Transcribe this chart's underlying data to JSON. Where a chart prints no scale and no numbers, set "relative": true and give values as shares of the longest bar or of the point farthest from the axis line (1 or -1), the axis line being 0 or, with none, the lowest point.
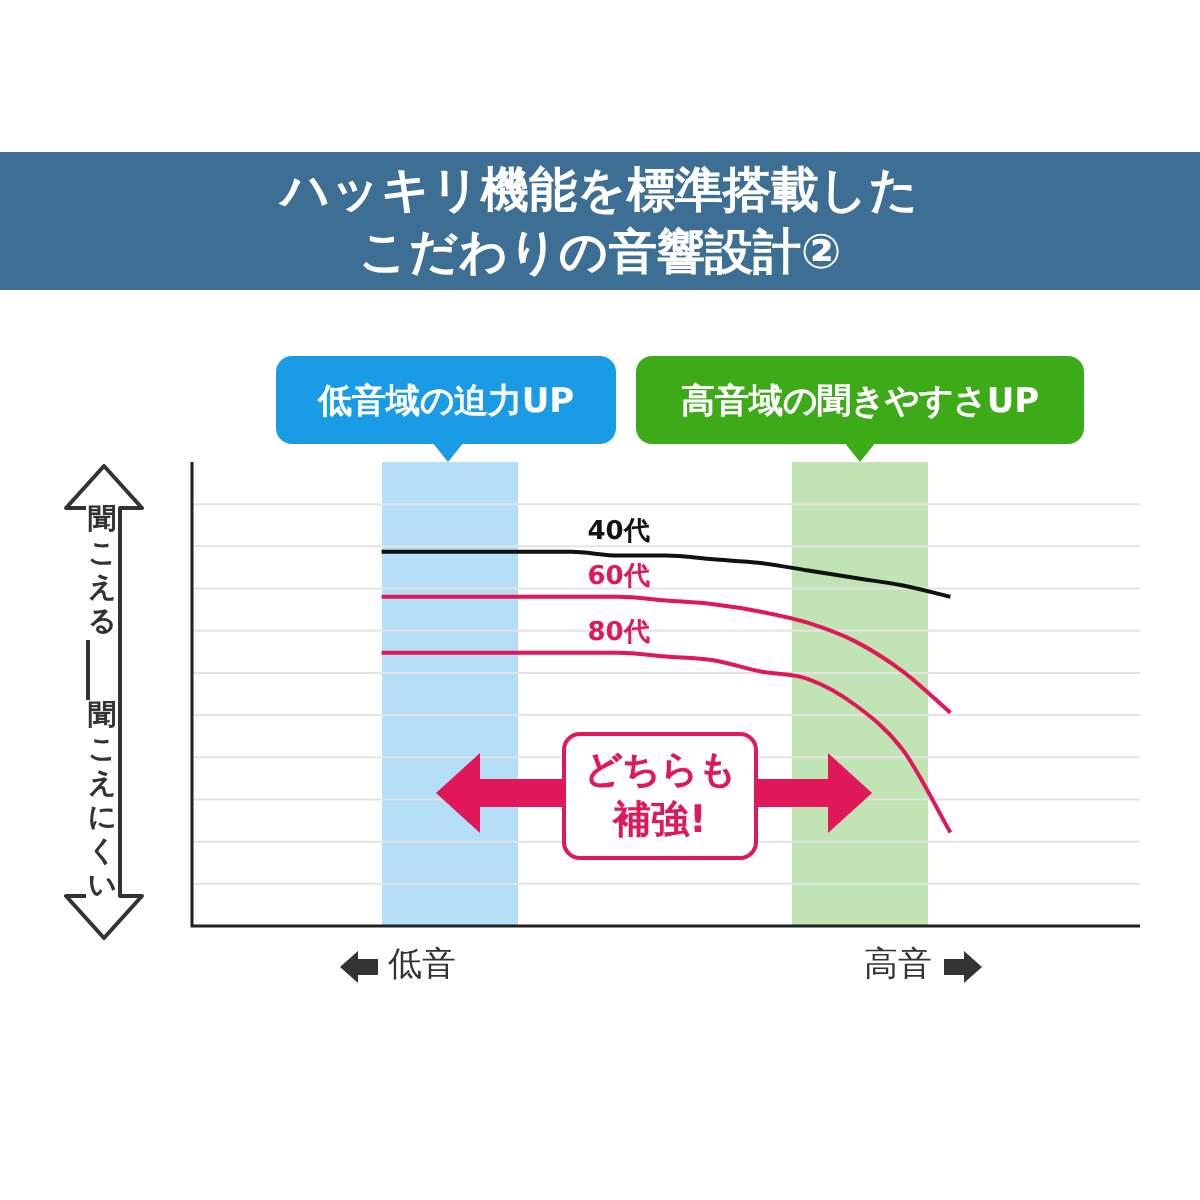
{
  "chart_data": {
    "type": "line",
    "title": "ハッキリ機能を標準搭載したこだわりの音響設計②",
    "relative": true,
    "grid": "y",
    "marker": "none",
    "line_style": "solid",
    "categories": [
      null,
      null,
      null,
      null,
      null,
      null,
      null,
      null,
      null,
      null,
      null,
      null,
      null,
      null,
      null,
      null,
      null,
      null,
      null,
      null,
      null
    ],
    "series": [
      {
        "name": "40代",
        "color": "#111111",
        "values": [
          null,
          null,
          null,
          null,
          1,
          1,
          1,
          1,
          1,
          0.99,
          0.99,
          0.98,
          0.97,
          0.95,
          0.93,
          0.91,
          0.88,
          null,
          null,
          null,
          null
        ]
      },
      {
        "name": "60代",
        "color": "#e0185a",
        "values": [
          null,
          null,
          null,
          null,
          0.88,
          0.88,
          0.88,
          0.88,
          0.88,
          0.88,
          0.87,
          0.86,
          0.84,
          0.81,
          0.76,
          0.68,
          0.57,
          null,
          null,
          null,
          null
        ]
      },
      {
        "name": "80代",
        "color": "#e0185a",
        "values": [
          null,
          null,
          null,
          null,
          0.73,
          0.73,
          0.73,
          0.73,
          0.73,
          0.73,
          0.72,
          0.71,
          0.68,
          0.66,
          0.59,
          0.47,
          0.25,
          null,
          null,
          null,
          null
        ]
      }
    ],
    "annotations": [
      "どちらも補強!",
      "低音",
      "高音",
      "聞こえる",
      "聞こえにくい",
      "低音域の迫力UP",
      "高音域の聞きやすさUP"
    ]
  }
}
